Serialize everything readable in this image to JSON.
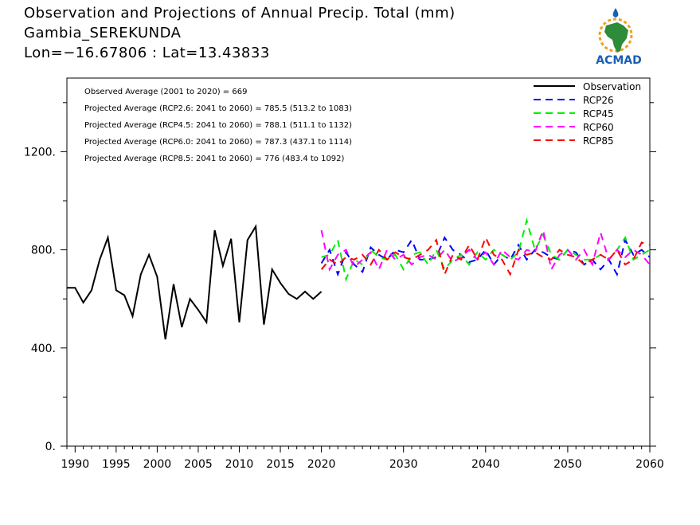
{
  "header": {
    "title": "Observation and Projections of Annual Precip. Total (mm)",
    "station": "Gambia_SEREKUNDA",
    "coords": "Lon=−16.67806 : Lat=13.43833"
  },
  "logo": {
    "text": "ACMAD",
    "icon": "africa-map-icon",
    "colors": {
      "map": "#2e8b3a",
      "text": "#1a5fb4",
      "sun": "#f0a020",
      "drop": "#1a5fb4"
    }
  },
  "chart_data": {
    "type": "line",
    "xlim": [
      1989,
      2060
    ],
    "ylim": [
      0,
      1500
    ],
    "x_ticks": [
      1990,
      1995,
      2000,
      2005,
      2010,
      2015,
      2020,
      2030,
      2040,
      2050,
      2060
    ],
    "x_tick_labels": [
      "1990",
      "1995",
      "2000",
      "2005",
      "2010",
      "2015",
      "2020",
      "2030",
      "2040",
      "2050",
      "2060"
    ],
    "y_ticks": [
      0,
      400,
      800,
      1200
    ],
    "y_tick_labels": [
      "0.",
      "400.",
      "800.",
      "1200."
    ],
    "grid": false,
    "legend_position": "top-right",
    "annotations": [
      "Observed Average (2001 to 2020) = 669",
      "Projected Average (RCP2.6: 2041 to 2060) = 785.5 (513.2 to 1083)",
      "Projected Average (RCP4.5: 2041 to 2060) = 788.1 (511.1 to 1132)",
      "Projected Average (RCP6.0: 2041 to 2060) = 787.3 (437.1 to 1114)",
      "Projected Average (RCP8.5: 2041 to 2060) = 776 (483.4 to 1092)"
    ],
    "series": [
      {
        "name": "Observation",
        "color": "#000000",
        "dash": "solid",
        "x": [
          1989,
          1990,
          1991,
          1992,
          1993,
          1994,
          1995,
          1996,
          1997,
          1998,
          1999,
          2000,
          2001,
          2002,
          2003,
          2004,
          2005,
          2006,
          2007,
          2008,
          2009,
          2010,
          2011,
          2012,
          2013,
          2014,
          2015,
          2016,
          2017,
          2018,
          2019,
          2020
        ],
        "values": [
          645,
          645,
          585,
          635,
          760,
          850,
          635,
          615,
          530,
          700,
          780,
          690,
          435,
          660,
          485,
          600,
          555,
          505,
          880,
          735,
          845,
          505,
          840,
          895,
          495,
          720,
          665,
          620,
          600,
          630,
          600,
          630
        ]
      },
      {
        "name": "RCP26",
        "color": "#0000ff",
        "dash": "dashed",
        "x": [
          2020,
          2021,
          2022,
          2023,
          2024,
          2025,
          2026,
          2027,
          2028,
          2029,
          2030,
          2031,
          2032,
          2033,
          2034,
          2035,
          2036,
          2037,
          2038,
          2039,
          2040,
          2041,
          2042,
          2043,
          2044,
          2045,
          2046,
          2047,
          2048,
          2049,
          2050,
          2051,
          2052,
          2053,
          2054,
          2055,
          2056,
          2057,
          2058,
          2059,
          2060
        ],
        "values": [
          745,
          800,
          700,
          790,
          740,
          710,
          810,
          780,
          760,
          800,
          790,
          840,
          760,
          760,
          770,
          850,
          800,
          780,
          750,
          760,
          800,
          740,
          780,
          760,
          820,
          760,
          800,
          790,
          770,
          760,
          800,
          790,
          740,
          760,
          720,
          760,
          700,
          840,
          780,
          800,
          770
        ]
      },
      {
        "name": "RCP45",
        "color": "#00ee00",
        "dash": "dashed",
        "x": [
          2020,
          2021,
          2022,
          2023,
          2024,
          2025,
          2026,
          2027,
          2028,
          2029,
          2030,
          2031,
          2032,
          2033,
          2034,
          2035,
          2036,
          2037,
          2038,
          2039,
          2040,
          2041,
          2042,
          2043,
          2044,
          2045,
          2046,
          2047,
          2048,
          2049,
          2050,
          2051,
          2052,
          2053,
          2054,
          2055,
          2056,
          2057,
          2058,
          2059,
          2060
        ],
        "values": [
          770,
          780,
          840,
          680,
          760,
          740,
          800,
          770,
          760,
          780,
          720,
          780,
          790,
          740,
          800,
          720,
          760,
          780,
          740,
          790,
          760,
          800,
          780,
          760,
          790,
          920,
          800,
          860,
          780,
          760,
          800,
          780,
          760,
          760,
          780,
          760,
          800,
          850,
          760,
          780,
          800
        ]
      },
      {
        "name": "RCP60",
        "color": "#ff00ff",
        "dash": "dashed",
        "x": [
          2020,
          2021,
          2022,
          2023,
          2024,
          2025,
          2026,
          2027,
          2028,
          2029,
          2030,
          2031,
          2032,
          2033,
          2034,
          2035,
          2036,
          2037,
          2038,
          2039,
          2040,
          2041,
          2042,
          2043,
          2044,
          2045,
          2046,
          2047,
          2048,
          2049,
          2050,
          2051,
          2052,
          2053,
          2054,
          2055,
          2056,
          2057,
          2058,
          2059,
          2060
        ],
        "values": [
          880,
          720,
          780,
          800,
          730,
          760,
          790,
          720,
          800,
          760,
          780,
          740,
          770,
          780,
          760,
          800,
          750,
          770,
          800,
          760,
          790,
          740,
          800,
          770,
          760,
          800,
          790,
          880,
          720,
          780,
          800,
          760,
          800,
          740,
          870,
          760,
          800,
          770,
          800,
          780,
          740
        ]
      },
      {
        "name": "RCP85",
        "color": "#ff0000",
        "dash": "dashed",
        "x": [
          2020,
          2021,
          2022,
          2023,
          2024,
          2025,
          2026,
          2027,
          2028,
          2029,
          2030,
          2031,
          2032,
          2033,
          2034,
          2035,
          2036,
          2037,
          2038,
          2039,
          2040,
          2041,
          2042,
          2043,
          2044,
          2045,
          2046,
          2047,
          2048,
          2049,
          2050,
          2051,
          2052,
          2053,
          2054,
          2055,
          2056,
          2057,
          2058,
          2059,
          2060
        ],
        "values": [
          720,
          760,
          740,
          770,
          760,
          780,
          740,
          800,
          760,
          790,
          770,
          760,
          780,
          800,
          840,
          700,
          780,
          760,
          820,
          760,
          850,
          780,
          760,
          700,
          800,
          780,
          790,
          770,
          760,
          800,
          780,
          770,
          740,
          760,
          780,
          760,
          800,
          740,
          760,
          830,
          820
        ]
      }
    ]
  }
}
